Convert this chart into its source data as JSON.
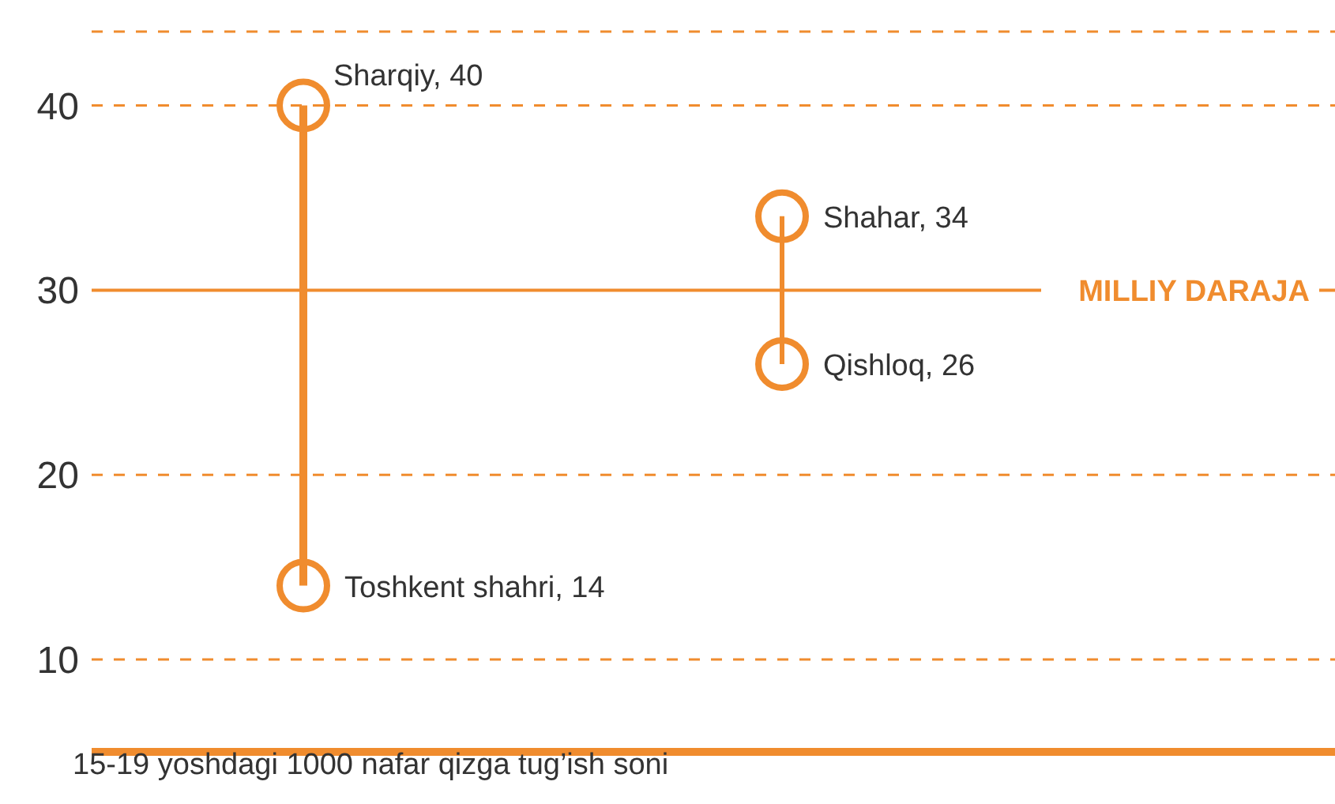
{
  "chart_data": {
    "type": "scatter",
    "xlabel": "15-19 yoshdagi 1000 nafar qizga tug’ish soni",
    "categories": [
      null,
      null
    ],
    "series": [
      {
        "color": "#f08c2e",
        "values": [
          40,
          34
        ],
        "value_labels": [
          "Sharqiy, 40",
          "Shahar, 34"
        ]
      },
      {
        "color": "#f08c2e",
        "values": [
          14,
          26
        ],
        "value_labels": [
          "Toshkent shahri, 14",
          "Qishloq, 26"
        ]
      }
    ],
    "ylim": [
      5,
      44
    ],
    "yticks": [
      10,
      20,
      30,
      40
    ],
    "grid": "y",
    "marker": "circle",
    "tick_labels": "y",
    "ref_lines": [
      {
        "axis": "y",
        "value": 30,
        "label": "MILLIY DARAJA",
        "color": "#f08c2e"
      }
    ]
  }
}
